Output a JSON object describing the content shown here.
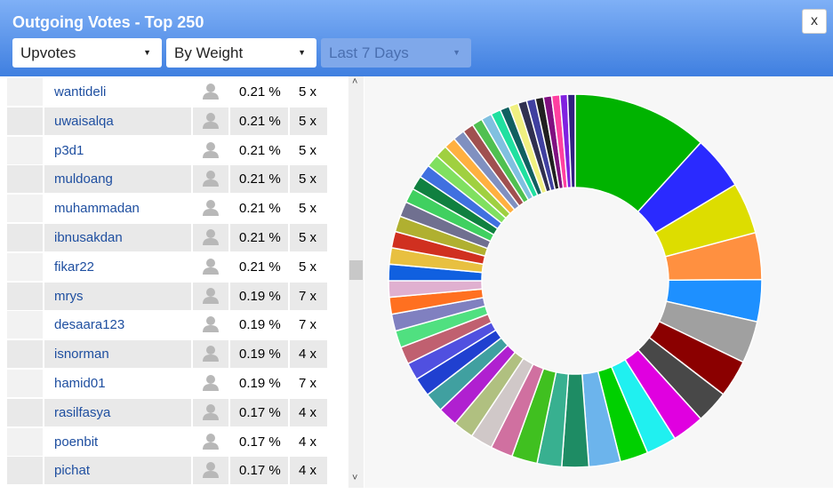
{
  "header": {
    "title": "Outgoing Votes - Top 250",
    "close": "x",
    "filters": [
      {
        "label": "Upvotes",
        "disabled": false
      },
      {
        "label": "By Weight",
        "disabled": false
      },
      {
        "label": "Last 7 Days",
        "disabled": true
      }
    ]
  },
  "table": {
    "rows": [
      [
        "wantideli",
        "0.21 %",
        "5 x"
      ],
      [
        "uwaisalqa",
        "0.21 %",
        "5 x"
      ],
      [
        "p3d1",
        "0.21 %",
        "5 x"
      ],
      [
        "muldoang",
        "0.21 %",
        "5 x"
      ],
      [
        "muhammadan",
        "0.21 %",
        "5 x"
      ],
      [
        "ibnusakdan",
        "0.21 %",
        "5 x"
      ],
      [
        "fikar22",
        "0.21 %",
        "5 x"
      ],
      [
        "mrys",
        "0.19 %",
        "7 x"
      ],
      [
        "desaara123",
        "0.19 %",
        "7 x"
      ],
      [
        "isnorman",
        "0.19 %",
        "4 x"
      ],
      [
        "hamid01",
        "0.19 %",
        "7 x"
      ],
      [
        "rasilfasya",
        "0.17 %",
        "4 x"
      ],
      [
        "poenbit",
        "0.17 %",
        "4 x"
      ],
      [
        "pichat",
        "0.17 %",
        "4 x"
      ]
    ]
  },
  "chart_data": {
    "type": "donut",
    "values": [
      11.6,
      4.6,
      4.4,
      4.0,
      3.6,
      3.6,
      3.2,
      2.8,
      2.75,
      2.6,
      2.4,
      2.7,
      2.3,
      2.1,
      2.2,
      1.9,
      1.9,
      1.75,
      1.7,
      1.67,
      1.6,
      1.5,
      1.5,
      1.45,
      1.45,
      1.45,
      1.4,
      1.4,
      1.4,
      1.4,
      1.35,
      1.3,
      1.25,
      1.2,
      1.15,
      1.1,
      1.05,
      1.0,
      1.0,
      0.95,
      0.9,
      0.9,
      0.85,
      0.8,
      0.8,
      0.75,
      0.75,
      0.7,
      0.7,
      0.7,
      0.65,
      0.65
    ],
    "colors": [
      "#00b300",
      "#2a2aff",
      "#dddd00",
      "#ff9040",
      "#1e90ff",
      "#a0a0a0",
      "#8b0000",
      "#484848",
      "#e000e0",
      "#20f0f0",
      "#00d000",
      "#6cb4ec",
      "#1e8c64",
      "#38b090",
      "#40c020",
      "#d070a0",
      "#d0c8c8",
      "#b0c080",
      "#b020d0",
      "#40a0a0",
      "#2040d0",
      "#5050e0",
      "#c06070",
      "#50e080",
      "#8080c0",
      "#ff7020",
      "#e0b0d0",
      "#1060e0",
      "#e8c040",
      "#d03020",
      "#b0b030",
      "#707090",
      "#40d060",
      "#108040",
      "#4070e0",
      "#80e060",
      "#a0d040",
      "#ffb040",
      "#8090c0",
      "#a05050",
      "#50c050",
      "#80c0e0",
      "#20e0a0",
      "#106060",
      "#f0f080",
      "#303050",
      "#4040a0",
      "#202020",
      "#801080",
      "#ff40a0",
      "#8020e0",
      "#302080"
    ]
  }
}
